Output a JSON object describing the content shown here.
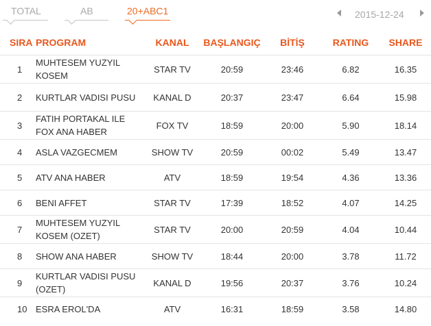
{
  "tabs": [
    {
      "label": "TOTAL",
      "active": false
    },
    {
      "label": "AB",
      "active": false
    },
    {
      "label": "20+ABC1",
      "active": true
    }
  ],
  "date": "2015-12-24",
  "colors": {
    "accent": "#f06a21",
    "header": "#e8571c",
    "inactive": "#a8a8a8"
  },
  "icons": {
    "prev": "chevron-left-icon",
    "next": "chevron-right-icon"
  },
  "table": {
    "headers": {
      "sira": "SIRA",
      "program": "PROGRAM",
      "kanal": "KANAL",
      "baslangic": "BAŞLANGIÇ",
      "bitis": "BİTİŞ",
      "rating": "RATING",
      "share": "SHARE"
    },
    "rows": [
      {
        "sira": "1",
        "program": "MUHTESEM YUZYIL KOSEM",
        "kanal": "STAR TV",
        "baslangic": "20:59",
        "bitis": "23:46",
        "rating": "6.82",
        "share": "16.35"
      },
      {
        "sira": "2",
        "program": "KURTLAR VADISI PUSU",
        "kanal": "KANAL D",
        "baslangic": "20:37",
        "bitis": "23:47",
        "rating": "6.64",
        "share": "15.98"
      },
      {
        "sira": "3",
        "program": "FATIH PORTAKAL ILE FOX ANA HABER",
        "kanal": "FOX TV",
        "baslangic": "18:59",
        "bitis": "20:00",
        "rating": "5.90",
        "share": "18.14"
      },
      {
        "sira": "4",
        "program": "ASLA VAZGECMEM",
        "kanal": "SHOW TV",
        "baslangic": "20:59",
        "bitis": "00:02",
        "rating": "5.49",
        "share": "13.47"
      },
      {
        "sira": "5",
        "program": "ATV ANA HABER",
        "kanal": "ATV",
        "baslangic": "18:59",
        "bitis": "19:54",
        "rating": "4.36",
        "share": "13.36"
      },
      {
        "sira": "6",
        "program": "BENI AFFET",
        "kanal": "STAR TV",
        "baslangic": "17:39",
        "bitis": "18:52",
        "rating": "4.07",
        "share": "14.25"
      },
      {
        "sira": "7",
        "program": "MUHTESEM YUZYIL KOSEM (OZET)",
        "kanal": "STAR TV",
        "baslangic": "20:00",
        "bitis": "20:59",
        "rating": "4.04",
        "share": "10.44"
      },
      {
        "sira": "8",
        "program": "SHOW ANA HABER",
        "kanal": "SHOW TV",
        "baslangic": "18:44",
        "bitis": "20:00",
        "rating": "3.78",
        "share": "11.72"
      },
      {
        "sira": "9",
        "program": "KURTLAR VADISI PUSU (OZET)",
        "kanal": "KANAL D",
        "baslangic": "19:56",
        "bitis": "20:37",
        "rating": "3.76",
        "share": "10.24"
      },
      {
        "sira": "10",
        "program": "ESRA EROL'DA",
        "kanal": "ATV",
        "baslangic": "16:31",
        "bitis": "18:59",
        "rating": "3.58",
        "share": "14.80"
      }
    ]
  }
}
